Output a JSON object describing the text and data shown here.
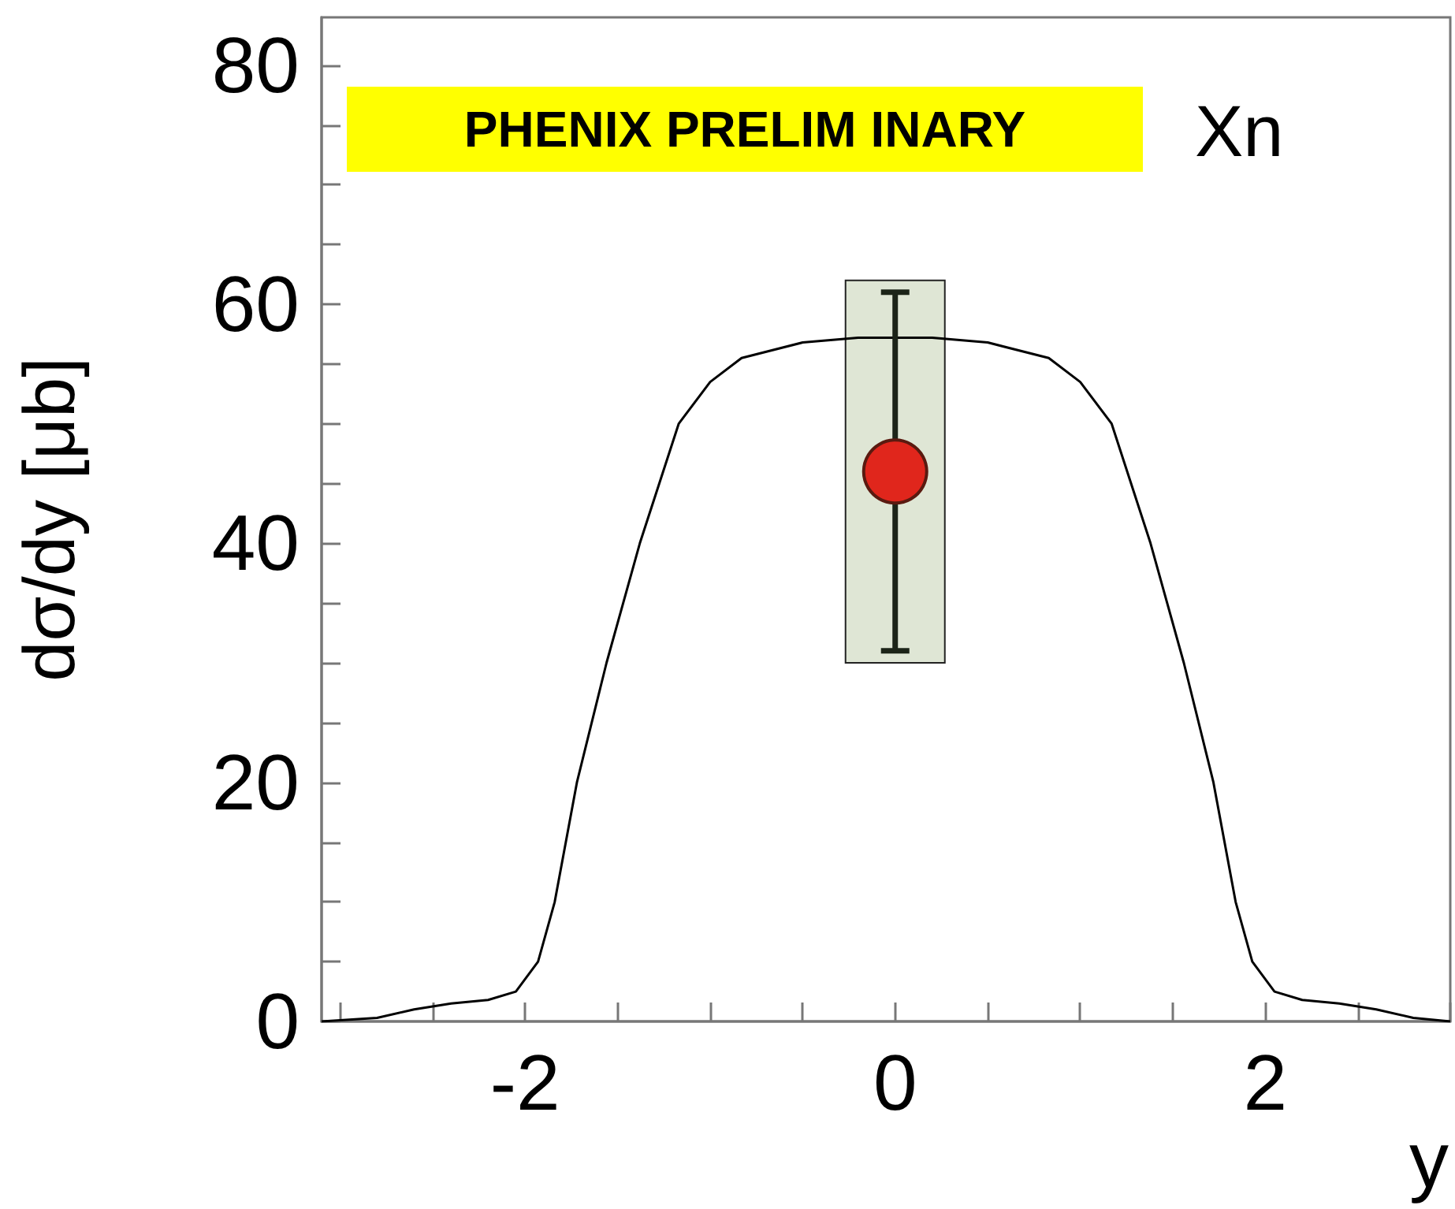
{
  "chart_data": {
    "type": "line",
    "xlabel": "y",
    "ylabel": "dσ/dy [μb]",
    "annotations": [
      "PHENIX PRELIM INARY",
      "Xn"
    ],
    "xlim": [
      -3.1,
      3.0
    ],
    "ylim": [
      0,
      84
    ],
    "xticks": [
      {
        "value": -3,
        "label": null
      },
      {
        "value": -2.5,
        "label": null
      },
      -2,
      {
        "value": -1.5,
        "label": null
      },
      {
        "value": -1,
        "label": null
      },
      {
        "value": -0.5,
        "label": null
      },
      0,
      {
        "value": 0.5,
        "label": null
      },
      {
        "value": 1,
        "label": null
      },
      {
        "value": 1.5,
        "label": null
      },
      2,
      {
        "value": 2.5,
        "label": null
      },
      {
        "value": 3,
        "label": null
      }
    ],
    "yticks": [
      0,
      {
        "value": 5,
        "label": null
      },
      {
        "value": 10,
        "label": null
      },
      {
        "value": 15,
        "label": null
      },
      20,
      {
        "value": 25,
        "label": null
      },
      {
        "value": 30,
        "label": null
      },
      {
        "value": 35,
        "label": null
      },
      40,
      {
        "value": 45,
        "label": null
      },
      {
        "value": 50,
        "label": null
      },
      {
        "value": 55,
        "label": null
      },
      60,
      {
        "value": 65,
        "label": null
      },
      {
        "value": 70,
        "label": null
      },
      {
        "value": 75,
        "label": null
      },
      80
    ],
    "grid": false,
    "series": [
      {
        "color": "#000000",
        "marker": "none",
        "line_style": "solid",
        "x": [
          -3.1,
          -2.8,
          -2.6,
          -2.4,
          -2.2,
          -2.05,
          -1.93,
          -1.84,
          -1.72,
          -1.56,
          -1.38,
          -1.17,
          -1.0,
          -0.83,
          -0.5,
          -0.2,
          0,
          0.2,
          0.5,
          0.83,
          1.0,
          1.17,
          1.38,
          1.56,
          1.72,
          1.84,
          1.93,
          2.05,
          2.2,
          2.4,
          2.6,
          2.8,
          3.0
        ],
        "values": [
          0,
          0.3,
          1.0,
          1.5,
          1.8,
          2.5,
          5,
          10,
          20,
          30,
          40,
          50,
          53.5,
          55.5,
          56.8,
          57.2,
          57.2,
          57.2,
          56.8,
          55.5,
          53.5,
          50,
          40,
          30,
          20,
          10,
          5,
          2.5,
          1.8,
          1.5,
          1.0,
          0.3,
          0
        ]
      },
      {
        "type": "bar",
        "color": "#dfe6d5",
        "x": [
          0
        ],
        "base": [
          30
        ],
        "values": [
          32
        ]
      },
      {
        "type": "scatter",
        "color": "#e0261c",
        "marker": "circle",
        "x": [
          0
        ],
        "values": [
          46
        ],
        "errors": [
          15
        ]
      }
    ]
  }
}
